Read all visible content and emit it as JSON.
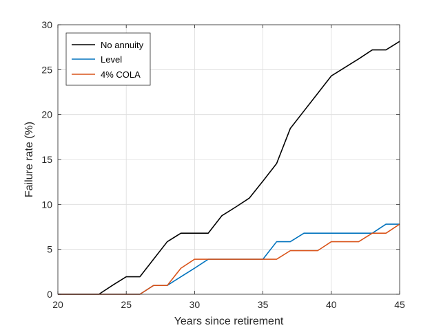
{
  "chart_data": {
    "type": "line",
    "title": "",
    "xlabel": "Years since retirement",
    "ylabel": "Failure rate (%)",
    "xlim": [
      20,
      45
    ],
    "ylim": [
      0,
      30
    ],
    "xticks": [
      20,
      25,
      30,
      35,
      40,
      45
    ],
    "yticks": [
      0,
      5,
      10,
      15,
      20,
      25,
      30
    ],
    "grid": true,
    "legend_position": "top-left",
    "x": [
      20,
      21,
      22,
      23,
      24,
      25,
      26,
      27,
      28,
      29,
      30,
      31,
      32,
      33,
      34,
      35,
      36,
      37,
      38,
      39,
      40,
      41,
      42,
      43,
      44,
      45
    ],
    "series": [
      {
        "name": "No annuity",
        "color": "#000000",
        "values": [
          0,
          0,
          0,
          0,
          1.0,
          1.95,
          1.95,
          3.9,
          5.85,
          6.8,
          6.8,
          6.8,
          8.75,
          9.7,
          10.7,
          12.6,
          14.55,
          18.45,
          20.4,
          22.35,
          24.3,
          25.25,
          26.2,
          27.2,
          27.2,
          28.15
        ]
      },
      {
        "name": "Level",
        "color": "#0072BD",
        "values": [
          0,
          0,
          0,
          0,
          0,
          0,
          0,
          0.98,
          0.98,
          1.95,
          2.9,
          3.9,
          3.9,
          3.9,
          3.9,
          3.9,
          5.85,
          5.85,
          6.8,
          6.8,
          6.8,
          6.8,
          6.8,
          6.8,
          7.8,
          7.8
        ]
      },
      {
        "name": "4% COLA",
        "color": "#D95319",
        "values": [
          0,
          0,
          0,
          0,
          0,
          0,
          0,
          0.98,
          0.98,
          2.9,
          3.9,
          3.9,
          3.9,
          3.9,
          3.9,
          3.9,
          3.9,
          4.85,
          4.85,
          4.85,
          5.85,
          5.85,
          5.85,
          6.8,
          6.8,
          7.8
        ]
      }
    ]
  }
}
